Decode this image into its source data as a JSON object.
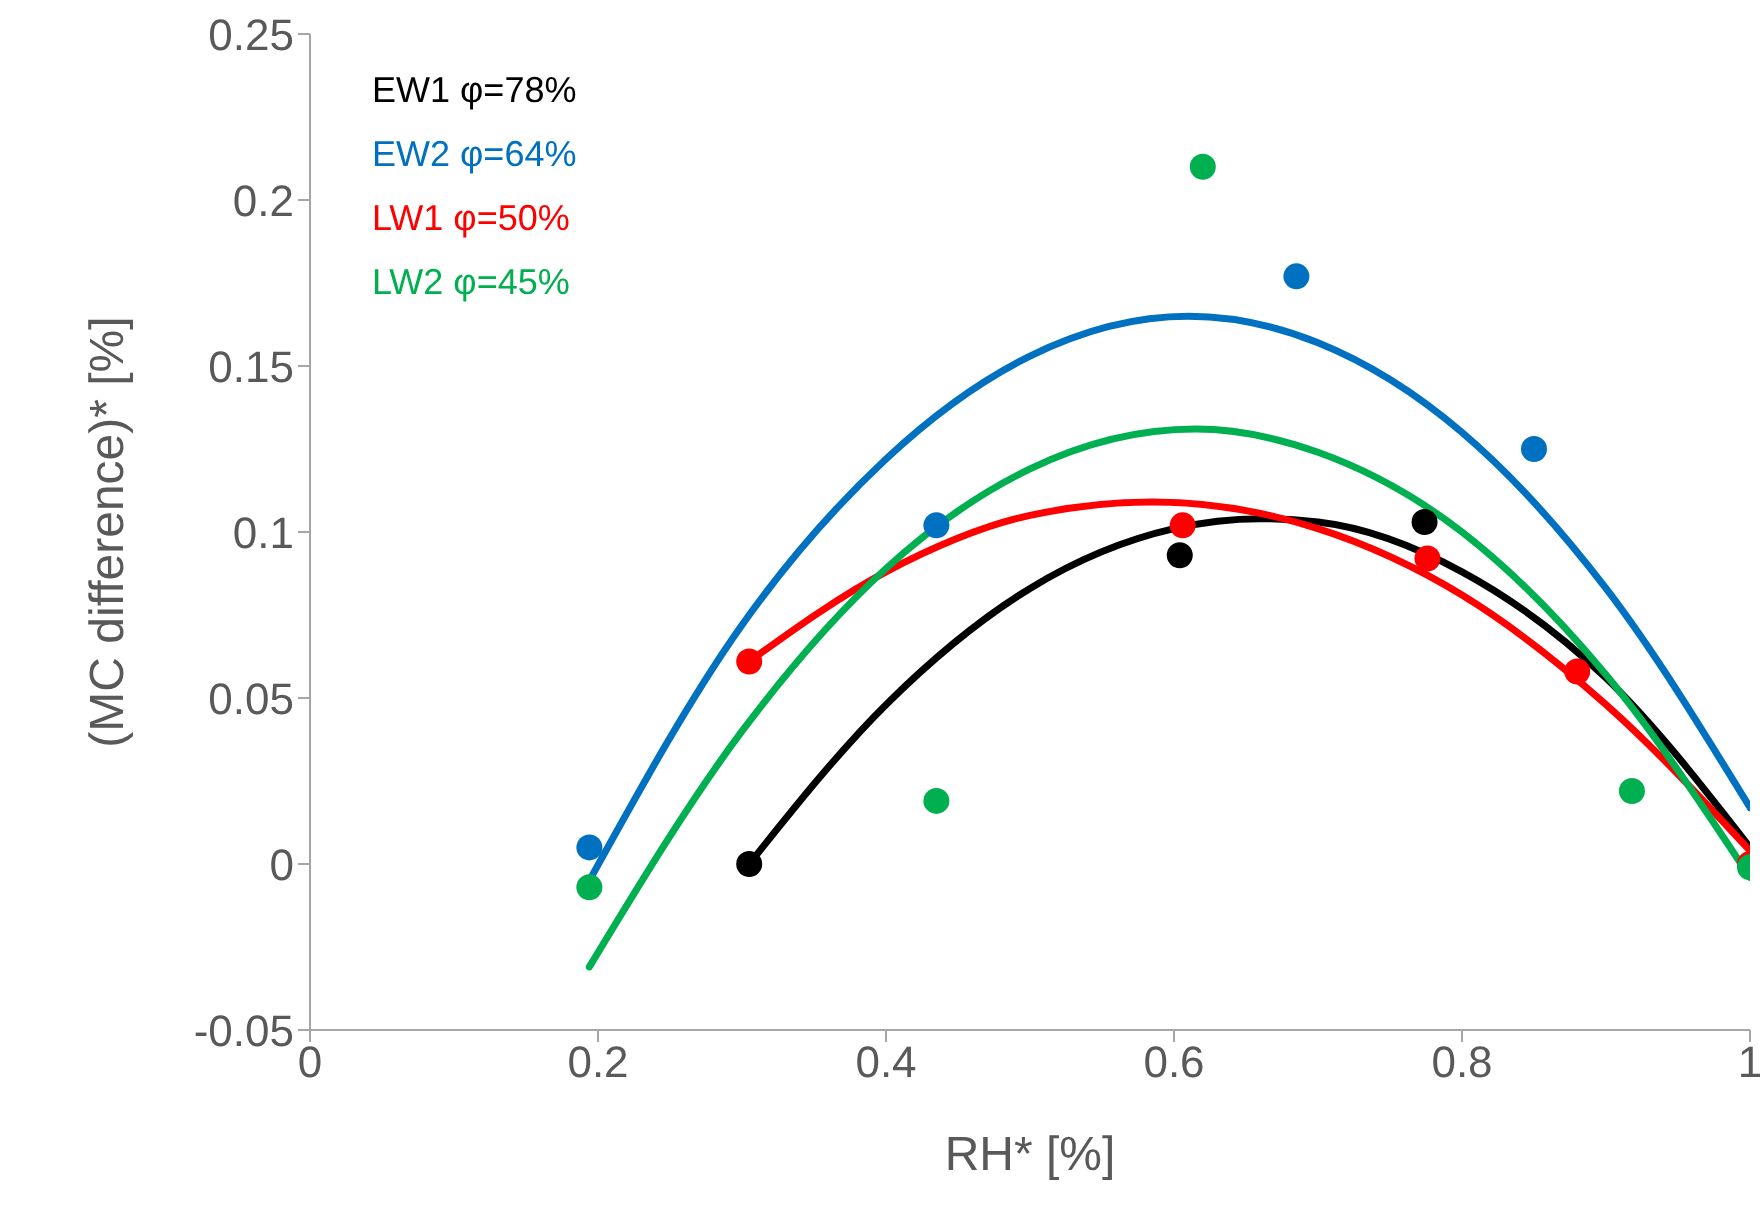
{
  "chart_data": {
    "type": "scatter",
    "xlabel": "RH* [%]",
    "ylabel": "(MC difference)* [%]",
    "xlim": [
      0,
      1
    ],
    "xticks": [
      0,
      0.2,
      0.4,
      0.6,
      0.8,
      1
    ],
    "ylim": [
      -0.05,
      0.25
    ],
    "yticks": [
      -0.05,
      0,
      0.05,
      0.1,
      0.15,
      0.2,
      0.25
    ],
    "grid": false,
    "legend": "top left",
    "marker": "circle",
    "series": [
      {
        "name": "EW1 φ=78%",
        "color": "#000000",
        "x": [
          0.305,
          0.604,
          0.774
        ],
        "values": [
          0,
          0.093,
          0.103
        ]
      },
      {
        "name": "EW2 φ=64%",
        "color": "#0070c0",
        "x": [
          0.194,
          0.435,
          0.685,
          0.85
        ],
        "values": [
          0.005,
          0.102,
          0.177,
          0.125
        ]
      },
      {
        "name": "LW1 φ=50%",
        "color": "#ff0000",
        "x": [
          0.305,
          0.606,
          0.776,
          0.88,
          1
        ],
        "values": [
          0.061,
          0.102,
          0.092,
          0.058,
          0
        ]
      },
      {
        "name": "LW2 φ=45%",
        "color": "#00b050",
        "x": [
          0.194,
          0.435,
          0.62,
          0.918,
          1
        ],
        "values": [
          -0.007,
          0.019,
          0.21,
          0.022,
          -0.001
        ]
      },
      {
        "type": "line",
        "marker": "none",
        "color": "#000000",
        "x": [
          0.305,
          0.4,
          0.5,
          0.6,
          0.66,
          0.7,
          0.8,
          0.9,
          1
        ],
        "values": [
          0,
          0.048,
          0.083,
          0.101,
          0.104,
          0.103,
          0.088,
          0.056,
          0.005
        ]
      },
      {
        "type": "line",
        "marker": "none",
        "color": "#0070c0",
        "x": [
          0.194,
          0.3,
          0.4,
          0.5,
          0.61,
          0.7,
          0.8,
          0.9,
          1
        ],
        "values": [
          -0.005,
          0.072,
          0.122,
          0.153,
          0.165,
          0.157,
          0.13,
          0.083,
          0.017
        ]
      },
      {
        "type": "line",
        "marker": "none",
        "color": "#ff0000",
        "x": [
          0.305,
          0.4,
          0.5,
          0.585,
          0.7,
          0.8,
          0.9,
          1
        ],
        "values": [
          0.061,
          0.088,
          0.105,
          0.109,
          0.101,
          0.081,
          0.048,
          0.004
        ]
      },
      {
        "type": "line",
        "marker": "none",
        "color": "#00b050",
        "x": [
          0.194,
          0.3,
          0.4,
          0.5,
          0.615,
          0.7,
          0.8,
          0.9,
          1
        ],
        "values": [
          -0.031,
          0.04,
          0.089,
          0.119,
          0.131,
          0.124,
          0.1,
          0.057,
          -0.004
        ]
      }
    ]
  }
}
